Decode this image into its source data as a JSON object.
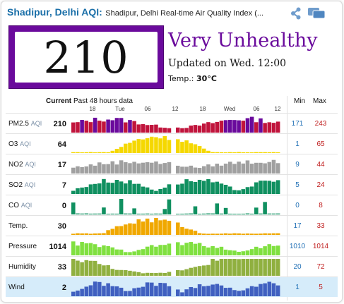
{
  "header": {
    "city_title": "Shadipur, Delhi AQI:",
    "subtitle": "Shadipur, Delhi Real-time Air Quality Index (...",
    "icons": [
      "share-icon",
      "chat-icon"
    ]
  },
  "aqi": {
    "value": "210",
    "status": "Very Unhealthy",
    "updated": "Updated on Wed. 12:00",
    "temp_label": "Temp.:",
    "temp_value": "30°C",
    "box_color": "#6a0a9c"
  },
  "table": {
    "current_label": "Current",
    "past_label": "Past 48 hours data",
    "min_label": "Min",
    "max_label": "Max",
    "time_labels": [
      "18",
      "Tue",
      "06",
      "12",
      "18",
      "Wed",
      "06",
      "12"
    ],
    "rows": [
      {
        "name": "PM2.5",
        "unit": "AQI",
        "current": "210",
        "min": "171",
        "max": "243",
        "color": "#c0143c"
      },
      {
        "name": "O3",
        "unit": "AQI",
        "current": "64",
        "min": "1",
        "max": "65",
        "color": "#f5d800"
      },
      {
        "name": "NO2",
        "unit": "AQI",
        "current": "17",
        "min": "9",
        "max": "44",
        "color": "#a0a0a0"
      },
      {
        "name": "SO2",
        "unit": "AQI",
        "current": "7",
        "min": "5",
        "max": "24",
        "color": "#109060"
      },
      {
        "name": "CO",
        "unit": "AQI",
        "current": "0",
        "min": "0",
        "max": "8",
        "color": "#109060"
      },
      {
        "name": "Temp.",
        "unit": "",
        "current": "30",
        "min": "17",
        "max": "33",
        "color": "#f0a800"
      },
      {
        "name": "Pressure",
        "unit": "",
        "current": "1014",
        "min": "1010",
        "max": "1014",
        "color": "#80e040"
      },
      {
        "name": "Humidity",
        "unit": "",
        "current": "33",
        "min": "20",
        "max": "72",
        "color": "#90b040"
      },
      {
        "name": "Wind",
        "unit": "",
        "current": "2",
        "min": "1",
        "max": "5",
        "color": "#4060c0"
      }
    ]
  }
}
